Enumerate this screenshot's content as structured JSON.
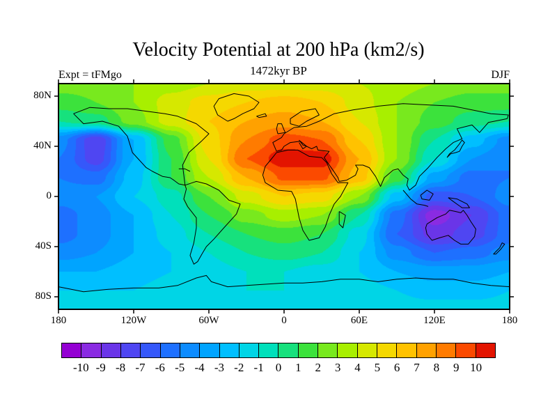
{
  "chart_data": {
    "type": "heatmap",
    "title": "Velocity Potential at 200 hPa (km2/s)",
    "subtitle": "1472kyr BP",
    "experiment": "Expt = tFMgo",
    "season": "DJF",
    "projection": "equirectangular",
    "lon_range": [
      -180,
      180
    ],
    "lat_range": [
      -90,
      90
    ],
    "x_axis": {
      "ticks": [
        {
          "lon": -180,
          "label": "180"
        },
        {
          "lon": -120,
          "label": "120W"
        },
        {
          "lon": -60,
          "label": "60W"
        },
        {
          "lon": 0,
          "label": "0"
        },
        {
          "lon": 60,
          "label": "60E"
        },
        {
          "lon": 120,
          "label": "120E"
        },
        {
          "lon": 180,
          "label": "180"
        }
      ]
    },
    "y_axis": {
      "ticks": [
        {
          "lat": 80,
          "label": "80N"
        },
        {
          "lat": 40,
          "label": "40N"
        },
        {
          "lat": 0,
          "label": "0"
        },
        {
          "lat": -40,
          "label": "40S"
        },
        {
          "lat": -80,
          "label": "80S"
        }
      ]
    },
    "grid": {
      "lons": [
        -180,
        -150,
        -120,
        -90,
        -60,
        -30,
        0,
        30,
        60,
        90,
        120,
        150,
        180
      ],
      "lats": [
        90,
        75,
        60,
        45,
        30,
        15,
        0,
        -15,
        -30,
        -45,
        -60,
        -75,
        -90
      ],
      "values": [
        [
          2.5,
          2.5,
          3,
          3.5,
          4,
          4.5,
          4.5,
          4.5,
          4,
          3.5,
          3,
          2.5,
          2.5
        ],
        [
          1.5,
          2,
          3,
          4.5,
          5.5,
          6,
          6.5,
          6,
          4.5,
          3,
          2,
          1.5,
          1.5
        ],
        [
          0,
          0.5,
          2.5,
          4.5,
          6,
          7,
          7.5,
          7,
          5,
          3,
          1.5,
          0.5,
          0
        ],
        [
          -4.5,
          -7.8,
          -3,
          1.5,
          5.5,
          8,
          9.5,
          9,
          6,
          3,
          0,
          -2.5,
          -4.5
        ],
        [
          -5,
          -7.5,
          -3,
          1,
          5,
          9,
          10.6,
          10.6,
          7,
          3,
          -1,
          -4,
          -5
        ],
        [
          -5,
          -5.5,
          -2.5,
          1,
          4,
          7,
          9.2,
          9.2,
          6.5,
          1.5,
          -3.5,
          -5.5,
          -5
        ],
        [
          -4.5,
          -4,
          -2,
          -0.5,
          2,
          4.5,
          6,
          5.5,
          3,
          -2.5,
          -6.5,
          -6,
          -4.5
        ],
        [
          -5.5,
          -4.5,
          -3,
          -1,
          1,
          2.5,
          3.5,
          3,
          0,
          -5.5,
          -9.6,
          -8,
          -5.5
        ],
        [
          -5.5,
          -4.5,
          -3,
          -1.5,
          0,
          1,
          1.5,
          1,
          -1.5,
          -6,
          -8.5,
          -7.5,
          -5.5
        ],
        [
          -4.5,
          -4,
          -3,
          -2,
          -1,
          0,
          0.5,
          0,
          -2,
          -4.5,
          -6,
          -5.5,
          -4.5
        ],
        [
          -3,
          -3,
          -2.5,
          -2,
          -1.5,
          -1,
          -1,
          -1.5,
          -2,
          -3,
          -3.5,
          -3.5,
          -3
        ],
        [
          -2,
          -2,
          -2,
          -1.5,
          -1,
          -1,
          -1,
          -1,
          -1.5,
          -2,
          -2.5,
          -2.5,
          -2
        ],
        [
          -1.5,
          -1.5,
          -1.5,
          -1.5,
          -1.5,
          -1.5,
          -1.5,
          -1.5,
          -1.5,
          -1.5,
          -1.5,
          -1.5,
          -1.5
        ]
      ]
    },
    "colorbar": {
      "levels": [
        -10,
        -9,
        -8,
        -7,
        -6,
        -5,
        -4,
        -3,
        -2,
        -1,
        0,
        1,
        2,
        3,
        4,
        5,
        6,
        7,
        8,
        9,
        10
      ],
      "labels": [
        "-10",
        "-9",
        "-8",
        "-7",
        "-6",
        "-5",
        "-4",
        "-3",
        "-2",
        "-1",
        "0",
        "1",
        "2",
        "3",
        "4",
        "5",
        "6",
        "7",
        "8",
        "9",
        "10"
      ],
      "colors": [
        "#9400d3",
        "#8a2be2",
        "#6a35e8",
        "#4f46f2",
        "#3558fa",
        "#1e70ff",
        "#0d8cff",
        "#00a4ff",
        "#00bfff",
        "#00d5e6",
        "#00e0bb",
        "#17e17d",
        "#3ce23c",
        "#78e91e",
        "#a8ef00",
        "#d6e800",
        "#f5d800",
        "#ffc200",
        "#ffa100",
        "#ff7b00",
        "#fb4a00",
        "#e31400"
      ]
    }
  }
}
